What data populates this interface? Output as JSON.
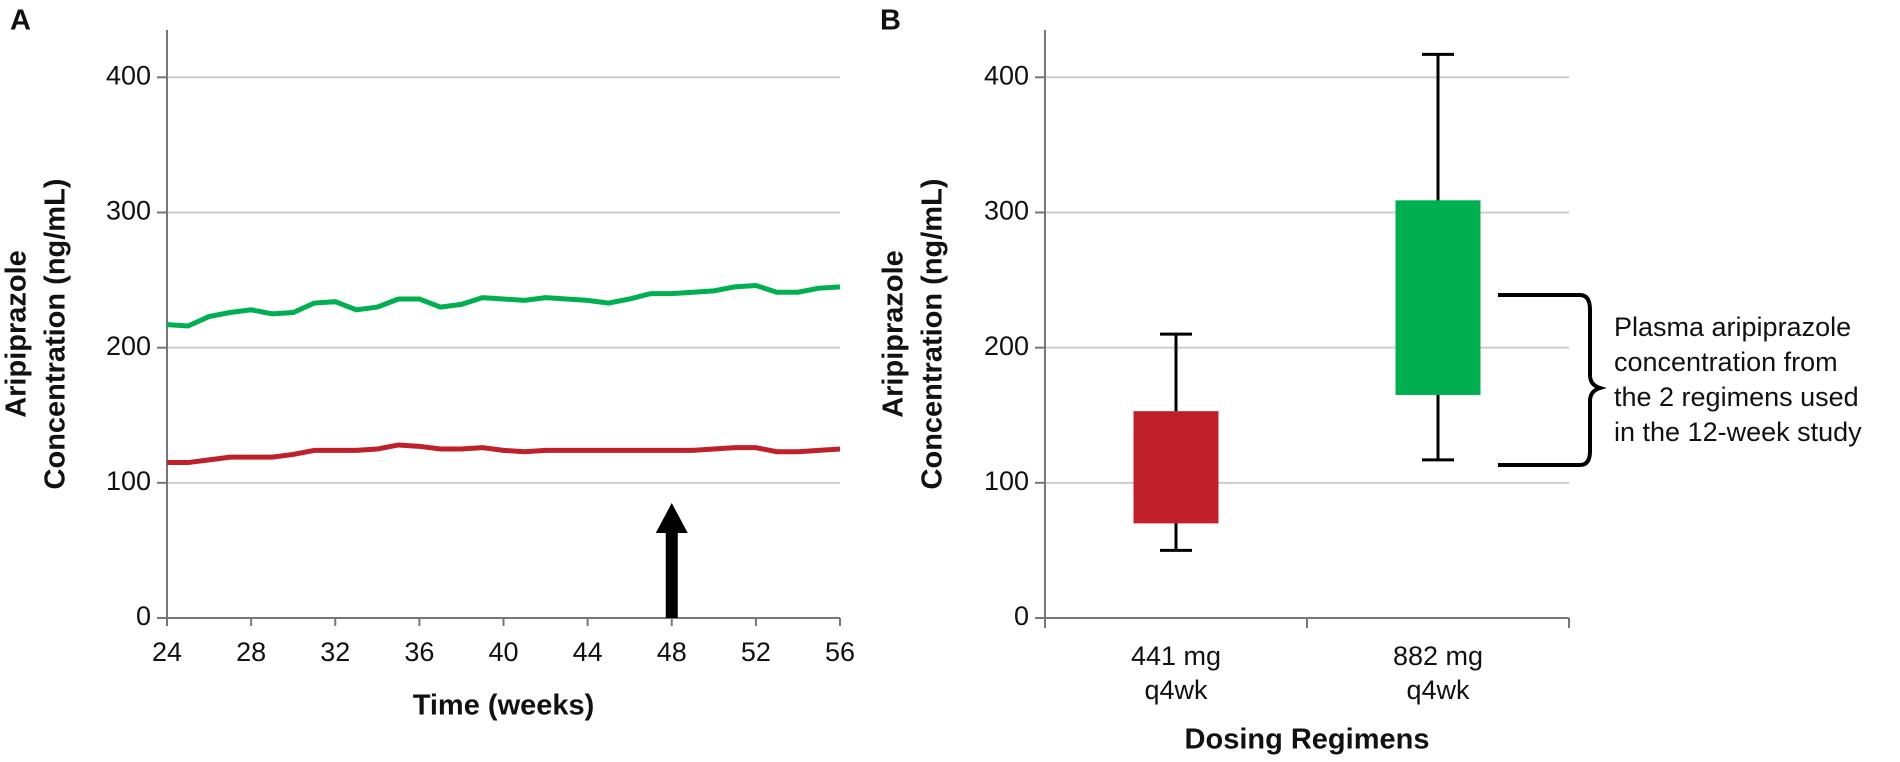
{
  "chart_data": [
    {
      "type": "line",
      "panel": "A",
      "ylabel": [
        "Aripiprazole",
        "Concentration (ng/mL)"
      ],
      "xlabel": "Time (weeks)",
      "xlim": [
        24,
        56
      ],
      "xticks": [
        24,
        28,
        32,
        36,
        40,
        44,
        48,
        52,
        56
      ],
      "ylim": [
        0,
        435
      ],
      "yticks": [
        0,
        100,
        200,
        300,
        400
      ],
      "grid": true,
      "x": [
        24,
        25,
        26,
        27,
        28,
        29,
        30,
        31,
        32,
        33,
        34,
        35,
        36,
        37,
        38,
        39,
        40,
        41,
        42,
        43,
        44,
        45,
        46,
        47,
        48,
        49,
        50,
        51,
        52,
        53,
        54,
        55,
        56
      ],
      "series": [
        {
          "color": "#00b050",
          "values": [
            217,
            216,
            223,
            226,
            228,
            225,
            226,
            233,
            234,
            228,
            230,
            236,
            236,
            230,
            232,
            237,
            236,
            235,
            237,
            236,
            235,
            233,
            236,
            240,
            240,
            241,
            242,
            245,
            246,
            241,
            241,
            244,
            245
          ]
        },
        {
          "color": "#c0202a",
          "values": [
            115,
            115,
            117,
            119,
            119,
            119,
            121,
            124,
            124,
            124,
            125,
            128,
            127,
            125,
            125,
            126,
            124,
            123,
            124,
            124,
            124,
            124,
            124,
            124,
            124,
            124,
            125,
            126,
            126,
            123,
            123,
            124,
            125
          ]
        }
      ],
      "annotation_arrow_x": 48
    },
    {
      "type": "box",
      "panel": "B",
      "ylabel": [
        "Aripiprazole",
        "Concentration (ng/mL)"
      ],
      "xlabel": "Dosing Regimens",
      "ylim": [
        0,
        435
      ],
      "yticks": [
        0,
        100,
        200,
        300,
        400
      ],
      "grid": true,
      "boxes": [
        {
          "category": [
            "441 mg",
            "q4wk"
          ],
          "color": "#c0202a",
          "whisker_low": 50,
          "q1": 70,
          "q3": 153,
          "whisker_high": 210
        },
        {
          "category": [
            "882 mg",
            "q4wk"
          ],
          "color": "#00b050",
          "whisker_low": 117,
          "q1": 165,
          "q3": 309,
          "whisker_high": 417
        }
      ],
      "annotation": [
        "Plasma aripiprazole",
        "concentration from",
        "the 2 regimens used",
        "in the 12-week study"
      ]
    }
  ]
}
